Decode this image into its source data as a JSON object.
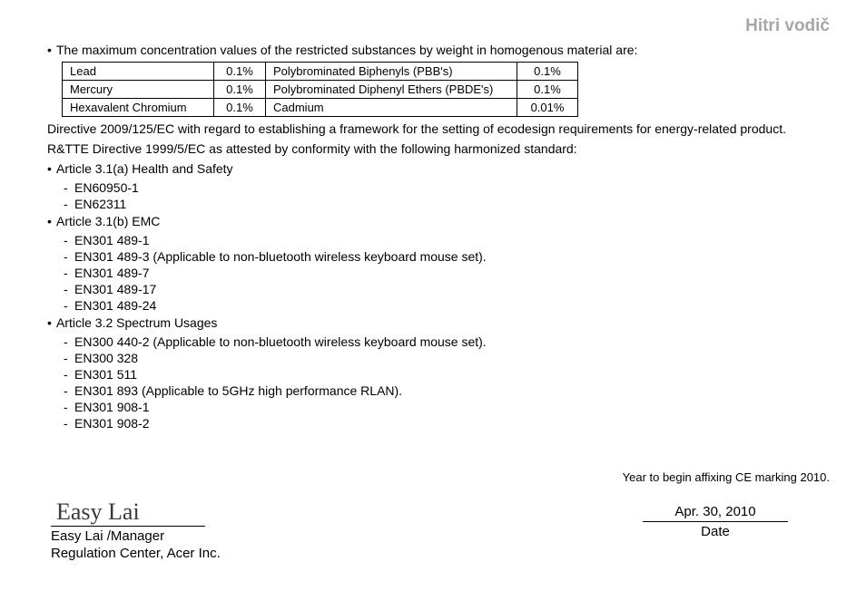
{
  "header": {
    "title": "Hitri vodič"
  },
  "intro_bullet": "The maximum concentration values of the restricted substances by weight in homogenous material are:",
  "table": {
    "rows": [
      {
        "name1": "Lead",
        "val1": "0.1%",
        "name2": "Polybrominated Biphenyls (PBB's)",
        "val2": "0.1%"
      },
      {
        "name1": "Mercury",
        "val1": "0.1%",
        "name2": "Polybrominated Diphenyl Ethers (PBDE's)",
        "val2": "0.1%"
      },
      {
        "name1": "Hexavalent Chromium",
        "val1": "0.1%",
        "name2": "Cadmium",
        "val2": "0.01%"
      }
    ]
  },
  "para1": "Directive 2009/125/EC with regard to establishing a framework for the setting of ecodesign requirements for energy-related product.",
  "para2": "R&TTE Directive 1999/5/EC as attested by conformity with the following harmonized standard:",
  "sections": [
    {
      "title": "Article 3.1(a) Health and Safety",
      "items": [
        "EN60950-1",
        "EN62311"
      ]
    },
    {
      "title": "Article 3.1(b) EMC",
      "items": [
        "EN301 489-1",
        "EN301 489-3 (Applicable to non-bluetooth wireless keyboard mouse set).",
        "EN301 489-7",
        "EN301 489-17",
        "EN301 489-24"
      ]
    },
    {
      "title": "Article 3.2 Spectrum Usages",
      "items": [
        "EN300 440-2  (Applicable to non-bluetooth wireless keyboard mouse set).",
        "EN300 328",
        "EN301 511",
        "EN301 893 (Applicable to 5GHz high performance RLAN).",
        "EN301 908-1",
        "EN301 908-2"
      ]
    }
  ],
  "ce_year": "Year to begin affixing CE marking 2010.",
  "signature": {
    "script": "Easy Lai",
    "name_line1": "Easy Lai /Manager",
    "name_line2": "Regulation Center, Acer Inc."
  },
  "date": {
    "value": "Apr. 30, 2010",
    "label": "Date"
  }
}
